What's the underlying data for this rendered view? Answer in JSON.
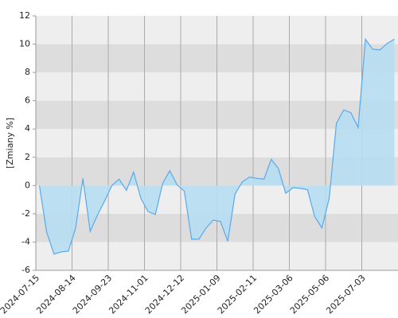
{
  "chart_data": {
    "type": "area",
    "ylabel": "[Zmiany %]",
    "categories": [
      "2024-07-15",
      null,
      null,
      null,
      null,
      "2024-08-14",
      null,
      null,
      null,
      null,
      "2024-09-23",
      null,
      null,
      null,
      null,
      "2024-11-01",
      null,
      null,
      null,
      null,
      "2024-12-12",
      null,
      null,
      null,
      null,
      "2025-01-09",
      null,
      null,
      null,
      null,
      "2025-02-11",
      null,
      null,
      null,
      null,
      "2025-03-06",
      null,
      null,
      null,
      null,
      "2025-05-06",
      null,
      null,
      null,
      null,
      "2025-07-03",
      null,
      null,
      null,
      null
    ],
    "values": [
      0,
      -3.3,
      -4.85,
      -4.7,
      -4.65,
      -3,
      0.5,
      -3.25,
      -2.1,
      -1.1,
      0,
      0.45,
      -0.35,
      0.95,
      -0.9,
      -1.85,
      -2.05,
      0.15,
      1.05,
      0.05,
      -0.4,
      -3.8,
      -3.8,
      -3,
      -2.45,
      -2.55,
      -3.95,
      -0.6,
      0.25,
      0.6,
      0.5,
      0.45,
      1.85,
      1.2,
      -0.55,
      -0.15,
      -0.2,
      -0.3,
      -2.2,
      -3,
      -0.9,
      4.4,
      5.35,
      5.15,
      4.1,
      10.35,
      9.65,
      9.6,
      10.05,
      10.35
    ],
    "color": "#5aa9ea",
    "fill": "#b6def1",
    "ylim": [
      -6,
      12
    ],
    "yticks": [
      -6,
      -4,
      -2,
      0,
      2,
      4,
      6,
      8,
      10,
      12
    ],
    "bands": [
      "#eeeeee",
      "#dddddd"
    ]
  }
}
